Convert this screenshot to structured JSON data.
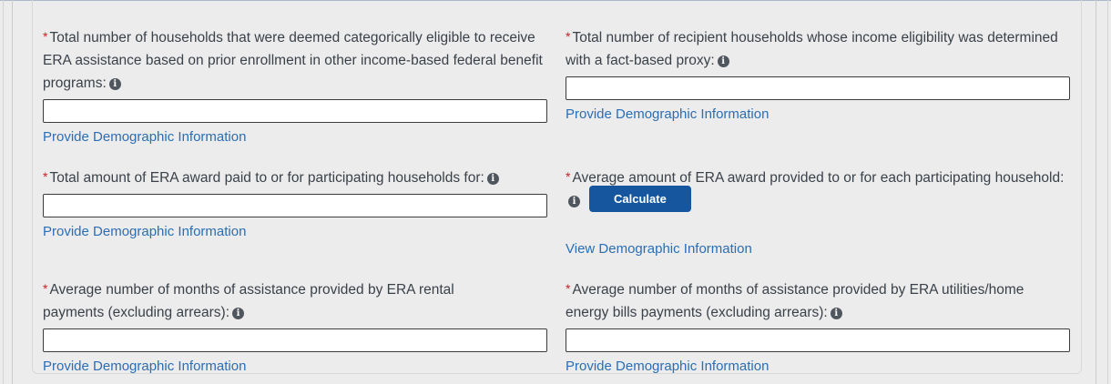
{
  "colors": {
    "page_bg": "#ececec",
    "panel_border": "#d8d8d8",
    "label_text": "#3b4149",
    "required_red": "#cd2026",
    "link_blue": "#2a6eb6",
    "button_blue": "#15569e",
    "input_border": "#3b3b3b",
    "info_icon_bg": "#4f565e"
  },
  "required_marker": "*",
  "icons": {
    "info": {
      "name": "info-icon",
      "glyph": "i"
    }
  },
  "fields": [
    {
      "label": "Total number of households that were deemed categorically eligible to receive ERA assistance based on prior enrollment in other income-based federal benefit programs:",
      "input_value": "",
      "link": "Provide Demographic Information"
    },
    {
      "label": "Total number of recipient households whose income eligibility was determined with a fact-based proxy:",
      "input_value": "",
      "link": "Provide Demographic Information"
    },
    {
      "label": "Total amount of ERA award paid to or for participating households for:",
      "input_value": "",
      "link": "Provide Demographic Information"
    },
    {
      "label": "Average amount of ERA award provided to or for each participating household:",
      "button": "Calculate",
      "link": "View Demographic Information"
    },
    {
      "label": "Average number of months of assistance provided by ERA rental payments (excluding arrears):",
      "input_value": "",
      "link": "Provide Demographic Information"
    },
    {
      "label": "Average number of months of assistance provided by ERA utilities/home energy bills payments (excluding arrears):",
      "input_value": "",
      "link": "Provide Demographic Information"
    }
  ]
}
